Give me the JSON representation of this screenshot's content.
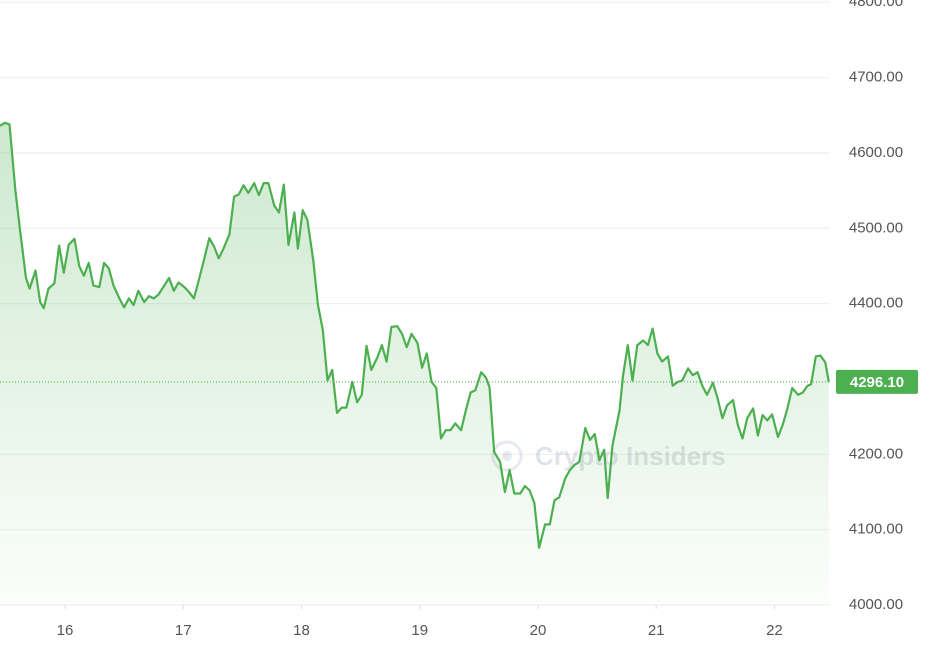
{
  "chart_data": {
    "type": "line",
    "watermark": "Crypto Insiders",
    "x": [
      15.45,
      15.49,
      15.53,
      15.58,
      15.62,
      15.67,
      15.7,
      15.75,
      15.79,
      15.82,
      15.86,
      15.91,
      15.95,
      15.99,
      16.03,
      16.08,
      16.12,
      16.16,
      16.2,
      16.24,
      16.29,
      16.33,
      16.37,
      16.41,
      16.46,
      16.5,
      16.54,
      16.58,
      16.62,
      16.67,
      16.71,
      16.75,
      16.79,
      16.84,
      16.88,
      16.92,
      16.96,
      17.01,
      17.05,
      17.09,
      17.13,
      17.17,
      17.22,
      17.26,
      17.3,
      17.34,
      17.39,
      17.43,
      17.47,
      17.51,
      17.55,
      17.6,
      17.64,
      17.68,
      17.72,
      17.77,
      17.81,
      17.85,
      17.89,
      17.94,
      17.97,
      18.01,
      18.05,
      18.1,
      18.14,
      18.18,
      18.22,
      18.26,
      18.3,
      18.34,
      18.38,
      18.43,
      18.47,
      18.51,
      18.55,
      18.59,
      18.64,
      18.68,
      18.72,
      18.76,
      18.81,
      18.85,
      18.89,
      18.93,
      18.98,
      19.02,
      19.06,
      19.1,
      19.14,
      19.18,
      19.22,
      19.26,
      19.3,
      19.35,
      19.39,
      19.43,
      19.47,
      19.52,
      19.56,
      19.59,
      19.63,
      19.68,
      19.72,
      19.76,
      19.8,
      19.85,
      19.89,
      19.93,
      19.97,
      20.01,
      20.06,
      20.1,
      20.14,
      20.18,
      20.23,
      20.27,
      20.31,
      20.35,
      20.4,
      20.44,
      20.48,
      20.52,
      20.56,
      20.59,
      20.63,
      20.69,
      20.72,
      20.76,
      20.8,
      20.84,
      20.89,
      20.93,
      20.97,
      21.01,
      21.05,
      21.1,
      21.14,
      21.18,
      21.22,
      21.27,
      21.31,
      21.35,
      21.39,
      21.43,
      21.48,
      21.52,
      21.56,
      21.6,
      21.65,
      21.69,
      21.73,
      21.77,
      21.82,
      21.86,
      21.9,
      21.94,
      21.98,
      22.03,
      22.07,
      22.11,
      22.15,
      22.2,
      22.24,
      22.28,
      22.31,
      22.35,
      22.39,
      22.43,
      22.46
    ],
    "series": [
      {
        "color": "#4caf50",
        "values": [
          4636,
          4640,
          4638,
          4550,
          4497,
          4434,
          4420,
          4444,
          4402,
          4394,
          4420,
          4427,
          4477,
          4441,
          4478,
          4486,
          4450,
          4437,
          4454,
          4424,
          4422,
          4454,
          4447,
          4424,
          4407,
          4395,
          4407,
          4398,
          4417,
          4402,
          4410,
          4407,
          4412,
          4424,
          4434,
          4417,
          4428,
          4422,
          4415,
          4407,
          4430,
          4455,
          4487,
          4476,
          4460,
          4473,
          4492,
          4542,
          4545,
          4557,
          4547,
          4560,
          4544,
          4560,
          4560,
          4530,
          4521,
          4558,
          4478,
          4521,
          4473,
          4524,
          4511,
          4457,
          4398,
          4365,
          4298,
          4312,
          4255,
          4262,
          4262,
          4296,
          4269,
          4279,
          4344,
          4312,
          4328,
          4345,
          4323,
          4369,
          4370,
          4360,
          4342,
          4360,
          4348,
          4315,
          4334,
          4296,
          4288,
          4221,
          4232,
          4232,
          4241,
          4232,
          4258,
          4282,
          4285,
          4309,
          4302,
          4289,
          4203,
          4190,
          4150,
          4179,
          4148,
          4148,
          4158,
          4152,
          4135,
          4076,
          4107,
          4107,
          4139,
          4143,
          4168,
          4179,
          4186,
          4190,
          4235,
          4219,
          4227,
          4192,
          4206,
          4142,
          4212,
          4258,
          4305,
          4345,
          4298,
          4345,
          4351,
          4345,
          4367,
          4334,
          4323,
          4330,
          4291,
          4296,
          4298,
          4314,
          4305,
          4309,
          4291,
          4279,
          4295,
          4274,
          4248,
          4265,
          4272,
          4239,
          4221,
          4248,
          4261,
          4225,
          4252,
          4245,
          4253,
          4223,
          4239,
          4261,
          4288,
          4279,
          4282,
          4291,
          4293,
          4330,
          4331,
          4322,
          4296
        ]
      }
    ],
    "xlim": [
      15.45,
      22.47
    ],
    "xticks": [
      16,
      17,
      18,
      19,
      20,
      21,
      22
    ],
    "ylim": [
      4000,
      4803
    ],
    "yticks": [
      {
        "value": 4000,
        "label": "4000.00"
      },
      {
        "value": 4100,
        "label": "4100.00"
      },
      {
        "value": 4200,
        "label": "4200.00"
      },
      {
        "value": 4400,
        "label": "4400.00"
      },
      {
        "value": 4500,
        "label": "4500.00"
      },
      {
        "value": 4600,
        "label": "4600.00"
      },
      {
        "value": 4700,
        "label": "4700.00"
      },
      {
        "value": 4800,
        "label": "4800.00"
      }
    ],
    "last_price": {
      "value": 4296.1,
      "label": "4296.10"
    },
    "grid": true
  }
}
